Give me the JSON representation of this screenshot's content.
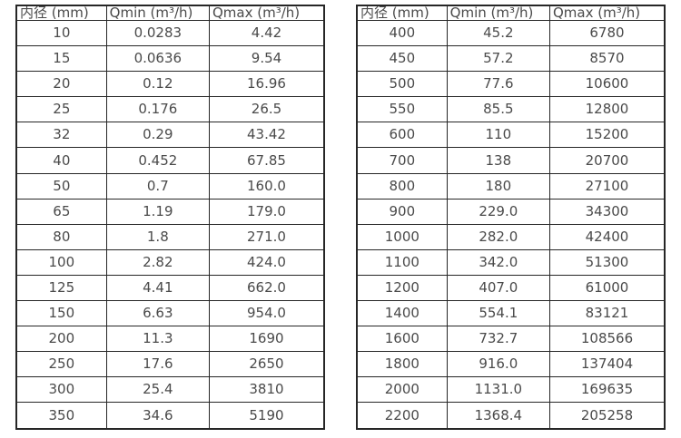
{
  "page": {
    "background_color": "#ffffff",
    "text_color": "#4a4a4a",
    "border_color": "#262626"
  },
  "chart_data": [
    {
      "type": "table",
      "name": "flow-spec-small-diameters",
      "headers": [
        "内径 (mm)",
        "Qmin (m³/h)",
        "Qmax (m³/h)"
      ],
      "rows": [
        [
          "10",
          "0.0283",
          "4.42"
        ],
        [
          "15",
          "0.0636",
          "9.54"
        ],
        [
          "20",
          "0.12",
          "16.96"
        ],
        [
          "25",
          "0.176",
          "26.5"
        ],
        [
          "32",
          "0.29",
          "43.42"
        ],
        [
          "40",
          "0.452",
          "67.85"
        ],
        [
          "50",
          "0.7",
          "160.0"
        ],
        [
          "65",
          "1.19",
          "179.0"
        ],
        [
          "80",
          "1.8",
          "271.0"
        ],
        [
          "100",
          "2.82",
          "424.0"
        ],
        [
          "125",
          "4.41",
          "662.0"
        ],
        [
          "150",
          "6.63",
          "954.0"
        ],
        [
          "200",
          "11.3",
          "1690"
        ],
        [
          "250",
          "17.6",
          "2650"
        ],
        [
          "300",
          "25.4",
          "3810"
        ],
        [
          "350",
          "34.6",
          "5190"
        ]
      ]
    },
    {
      "type": "table",
      "name": "flow-spec-large-diameters",
      "headers": [
        "内径 (mm)",
        "Qmin (m³/h)",
        "Qmax (m³/h)"
      ],
      "rows": [
        [
          "400",
          "45.2",
          "6780"
        ],
        [
          "450",
          "57.2",
          "8570"
        ],
        [
          "500",
          "77.6",
          "10600"
        ],
        [
          "550",
          "85.5",
          "12800"
        ],
        [
          "600",
          "110",
          "15200"
        ],
        [
          "700",
          "138",
          "20700"
        ],
        [
          "800",
          "180",
          "27100"
        ],
        [
          "900",
          "229.0",
          "34300"
        ],
        [
          "1000",
          "282.0",
          "42400"
        ],
        [
          "1100",
          "342.0",
          "51300"
        ],
        [
          "1200",
          "407.0",
          "61000"
        ],
        [
          "1400",
          "554.1",
          "83121"
        ],
        [
          "1600",
          "732.7",
          "108566"
        ],
        [
          "1800",
          "916.0",
          "137404"
        ],
        [
          "2000",
          "1131.0",
          "169635"
        ],
        [
          "2200",
          "1368.4",
          "205258"
        ]
      ]
    }
  ]
}
